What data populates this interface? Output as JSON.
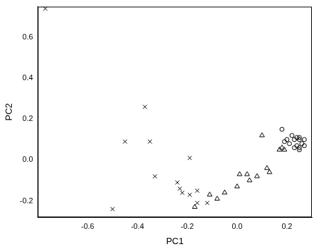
{
  "chart_data": {
    "type": "scatter",
    "x_label": "PC1",
    "y_label": "PC2",
    "xlim": [
      -0.8,
      0.3
    ],
    "ylim": [
      -0.28,
      0.75
    ],
    "xticks": [
      -0.6,
      -0.4,
      -0.2,
      {
        "value": 0,
        "label": "0.0"
      },
      0.2
    ],
    "yticks": [
      -0.2,
      {
        "value": 0,
        "label": "0.0"
      },
      0.2,
      0.4,
      0.6
    ],
    "grid": false,
    "series": [
      {
        "color": "#000000",
        "marker": "cross",
        "x": [
          -0.77,
          -0.37,
          -0.45,
          -0.35,
          -0.33,
          -0.19,
          -0.5,
          -0.24,
          -0.23,
          -0.22,
          -0.19,
          -0.16,
          -0.16,
          -0.12
        ],
        "values": [
          0.74,
          0.26,
          0.09,
          0.09,
          -0.08,
          0.01,
          -0.24,
          -0.11,
          -0.14,
          -0.16,
          -0.17,
          -0.15,
          -0.21,
          -0.21
        ]
      },
      {
        "color": "#000000",
        "marker": "triangle",
        "x": [
          -0.17,
          -0.11,
          -0.08,
          -0.05,
          0.0,
          0.01,
          0.04,
          0.05,
          0.08,
          0.12,
          0.13,
          0.1,
          0.17,
          0.18,
          0.19
        ],
        "values": [
          -0.23,
          -0.17,
          -0.19,
          -0.16,
          -0.13,
          -0.07,
          -0.07,
          -0.1,
          -0.08,
          -0.04,
          -0.06,
          0.12,
          0.05,
          0.06,
          0.05
        ]
      },
      {
        "color": "#000000",
        "marker": "circle",
        "x": [
          0.18,
          0.19,
          0.2,
          0.21,
          0.22,
          0.23,
          0.24,
          0.25,
          0.24,
          0.25,
          0.25,
          0.26,
          0.27,
          0.27,
          0.23,
          0.25
        ],
        "values": [
          0.15,
          0.09,
          0.1,
          0.08,
          0.12,
          0.1,
          0.11,
          0.11,
          0.07,
          0.06,
          0.05,
          0.08,
          0.07,
          0.1,
          0.06,
          0.1
        ]
      }
    ]
  }
}
